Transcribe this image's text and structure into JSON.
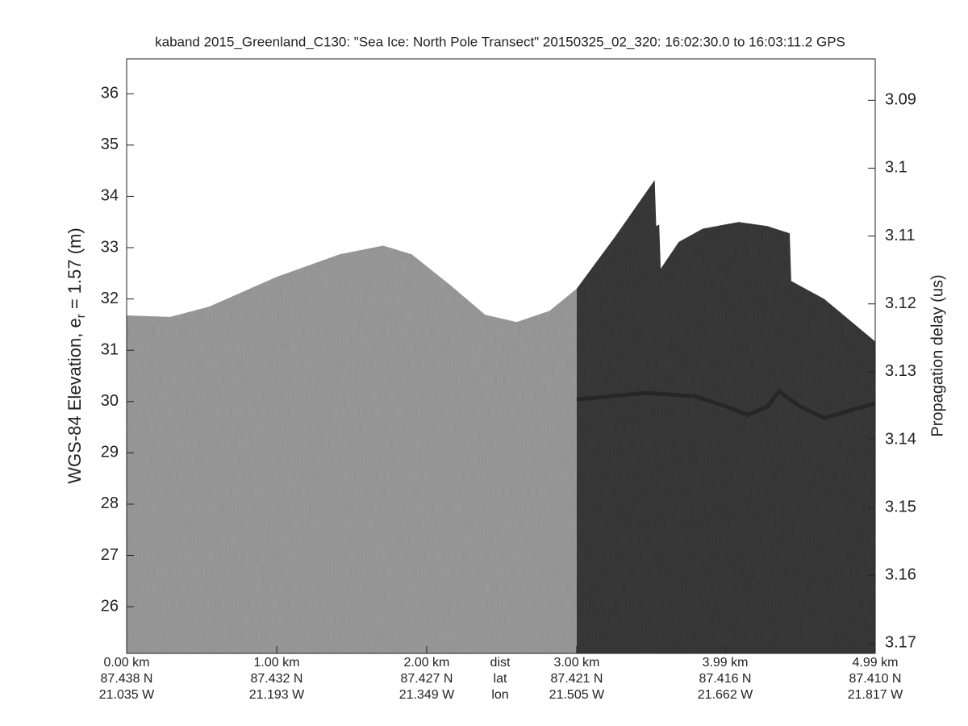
{
  "chart_data": {
    "type": "area",
    "title": "kaband 2015_Greenland_C130: \"Sea Ice: North Pole Transect\"  20150325_02_320: 16:02:30.0 to 16:03:11.2 GPS",
    "ylabel": {
      "prefix": "WGS-84 Elevation, e",
      "subscript": "r",
      "suffix": " = 1.57 (m)"
    },
    "y2label": "Propagation delay (us)",
    "xlim": [
      0,
      4.99
    ],
    "xticks": [
      {
        "value": 0,
        "label": "0.00 km"
      },
      {
        "value": 1.0,
        "label": "1.00 km"
      },
      {
        "value": 2.0,
        "label": "2.00 km"
      },
      {
        "value": 3.0,
        "label": "3.00 km"
      },
      {
        "value": 3.99,
        "label": "3.99 km"
      },
      {
        "value": 4.99,
        "label": "4.99 km"
      }
    ],
    "lat_labels": [
      "87.438 N",
      "87.432 N",
      "87.427 N",
      "87.421 N",
      "87.416 N",
      "87.410 N"
    ],
    "lon_labels": [
      "21.035 W",
      "21.193 W",
      "21.349 W",
      "21.505 W",
      "21.662 W",
      "21.817 W"
    ],
    "x_row_labels": [
      "dist",
      "lat",
      "lon"
    ],
    "ylim": [
      25.09,
      36.68
    ],
    "yticks": [
      26,
      27,
      28,
      29,
      30,
      31,
      32,
      33,
      34,
      35,
      36
    ],
    "y2lim": [
      3.1715,
      3.0839
    ],
    "y2ticks": [
      3.09,
      3.1,
      3.11,
      3.12,
      3.13,
      3.14,
      3.15,
      3.16,
      3.17
    ],
    "series": [
      {
        "style": "area",
        "color": "#9c9c9c",
        "x": [
          0,
          0.29,
          0.55,
          1.0,
          1.42,
          1.71,
          1.9,
          2.17,
          2.39,
          2.6,
          2.82,
          3.0
        ],
        "values": [
          31.68,
          31.65,
          31.85,
          32.43,
          32.87,
          33.04,
          32.87,
          32.24,
          31.69,
          31.55,
          31.77,
          32.2
        ]
      },
      {
        "style": "area",
        "color": "#3a3a3a",
        "x": [
          3.0,
          3.25,
          3.52,
          3.53,
          3.55,
          3.56,
          3.68,
          3.84,
          4.08,
          4.27,
          4.42,
          4.43,
          4.65,
          4.99
        ],
        "values": [
          32.2,
          33.19,
          34.32,
          33.42,
          33.45,
          32.59,
          33.11,
          33.37,
          33.5,
          33.42,
          33.28,
          32.35,
          32.0,
          31.17
        ]
      },
      {
        "style": "line",
        "color": "#1c1c1c",
        "x": [
          3.0,
          3.47,
          3.79,
          4.0,
          4.14,
          4.27,
          4.35,
          4.49,
          4.65,
          4.84,
          4.99
        ],
        "values": [
          30.04,
          30.17,
          30.1,
          29.9,
          29.74,
          29.9,
          30.2,
          29.9,
          29.68,
          29.84,
          29.96
        ]
      }
    ]
  }
}
